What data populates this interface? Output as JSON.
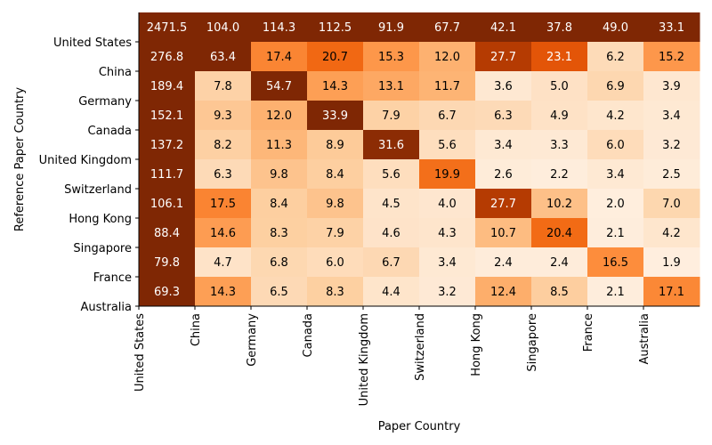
{
  "chart_data": {
    "type": "heatmap",
    "xlabel": "Paper Country",
    "ylabel": "Reference Paper Country",
    "x_tick_labels": [
      "United States",
      "China",
      "Germany",
      "Canada",
      "United Kingdom",
      "Switzerland",
      "Hong Kong",
      "Singapore",
      "France",
      "Australia"
    ],
    "y_tick_labels": [
      "United States",
      "China",
      "Germany",
      "Canada",
      "United Kingdom",
      "Switzerland",
      "Hong Kong",
      "Singapore",
      "France",
      "Australia"
    ],
    "values": [
      [
        2471.5,
        104.0,
        114.3,
        112.5,
        91.9,
        67.7,
        42.1,
        37.8,
        49.0,
        33.1
      ],
      [
        276.8,
        63.4,
        17.4,
        20.7,
        15.3,
        12.0,
        27.7,
        23.1,
        6.2,
        15.2
      ],
      [
        189.4,
        7.8,
        54.7,
        14.3,
        13.1,
        11.7,
        3.6,
        5.0,
        6.9,
        3.9
      ],
      [
        152.1,
        9.3,
        12.0,
        33.9,
        7.9,
        6.7,
        6.3,
        4.9,
        4.2,
        3.4
      ],
      [
        137.2,
        8.2,
        11.3,
        8.9,
        31.6,
        5.6,
        3.4,
        3.3,
        6.0,
        3.2
      ],
      [
        111.7,
        6.3,
        9.8,
        8.4,
        5.6,
        19.9,
        2.6,
        2.2,
        3.4,
        2.5
      ],
      [
        106.1,
        17.5,
        8.4,
        9.8,
        4.5,
        4.0,
        27.7,
        10.2,
        2.0,
        7.0
      ],
      [
        88.4,
        14.6,
        8.3,
        7.9,
        4.6,
        4.3,
        10.7,
        20.4,
        2.1,
        4.2
      ],
      [
        79.8,
        4.7,
        6.8,
        6.0,
        6.7,
        3.4,
        2.4,
        2.4,
        16.5,
        1.9
      ],
      [
        69.3,
        14.3,
        6.5,
        8.3,
        4.4,
        3.2,
        12.4,
        8.5,
        2.1,
        17.1
      ]
    ],
    "colormap": "Oranges",
    "colors": {
      "high": "#7f2704",
      "mid": "#f87f2c",
      "low": "#fff5eb"
    },
    "grid": false
  }
}
